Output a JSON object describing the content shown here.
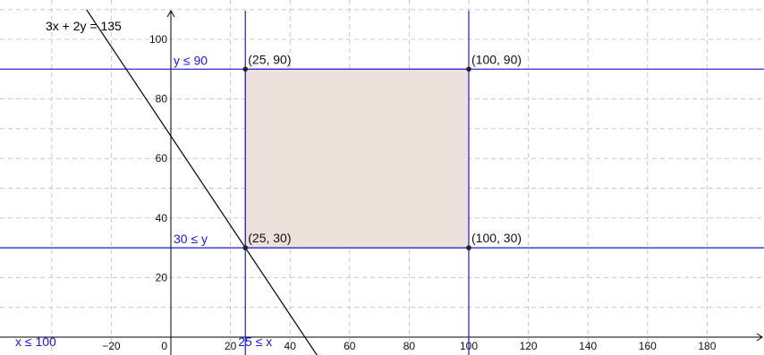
{
  "chart_data": {
    "type": "line",
    "title": "",
    "xlabel": "",
    "ylabel": "",
    "xlim": [
      -55,
      198
    ],
    "ylim": [
      -7,
      110
    ],
    "grid": true,
    "x_ticks": [
      -20,
      0,
      20,
      40,
      60,
      80,
      100,
      120,
      140,
      160,
      180
    ],
    "x_tick_labels": [
      "−20",
      "0",
      "20",
      "40",
      "60",
      "80",
      "100",
      "120",
      "140",
      "160",
      "180"
    ],
    "y_ticks": [
      20,
      40,
      60,
      80,
      100
    ],
    "y_tick_labels": [
      "20",
      "40",
      "60",
      "80",
      "100"
    ],
    "constraint_lines": [
      {
        "label": "y ≤ 90",
        "orientation": "horizontal",
        "value": 90,
        "color": "#1a1ad8"
      },
      {
        "label": "30 ≤ y",
        "orientation": "horizontal",
        "value": 30,
        "color": "#1a1ad8"
      },
      {
        "label": "25 ≤ x",
        "orientation": "vertical",
        "value": 25,
        "color": "#1a1ad8"
      },
      {
        "label": "x ≤ 100",
        "orientation": "vertical",
        "value": 100,
        "color": "#1a1ad8"
      }
    ],
    "objective_line": {
      "label": "3x + 2y = 135",
      "a": 3,
      "b": 2,
      "c": 135,
      "color": "#000000"
    },
    "feasible_region": {
      "vertices": [
        [
          25,
          90
        ],
        [
          100,
          90
        ],
        [
          100,
          30
        ],
        [
          25,
          30
        ]
      ],
      "fill": "#ede1dc",
      "stroke": "#8a3a8a"
    },
    "points": [
      {
        "label": "(25, 90)",
        "x": 25,
        "y": 90
      },
      {
        "label": "(100, 90)",
        "x": 100,
        "y": 90
      },
      {
        "label": "(25, 30)",
        "x": 25,
        "y": 30
      },
      {
        "label": "(100, 30)",
        "x": 100,
        "y": 30
      }
    ]
  }
}
